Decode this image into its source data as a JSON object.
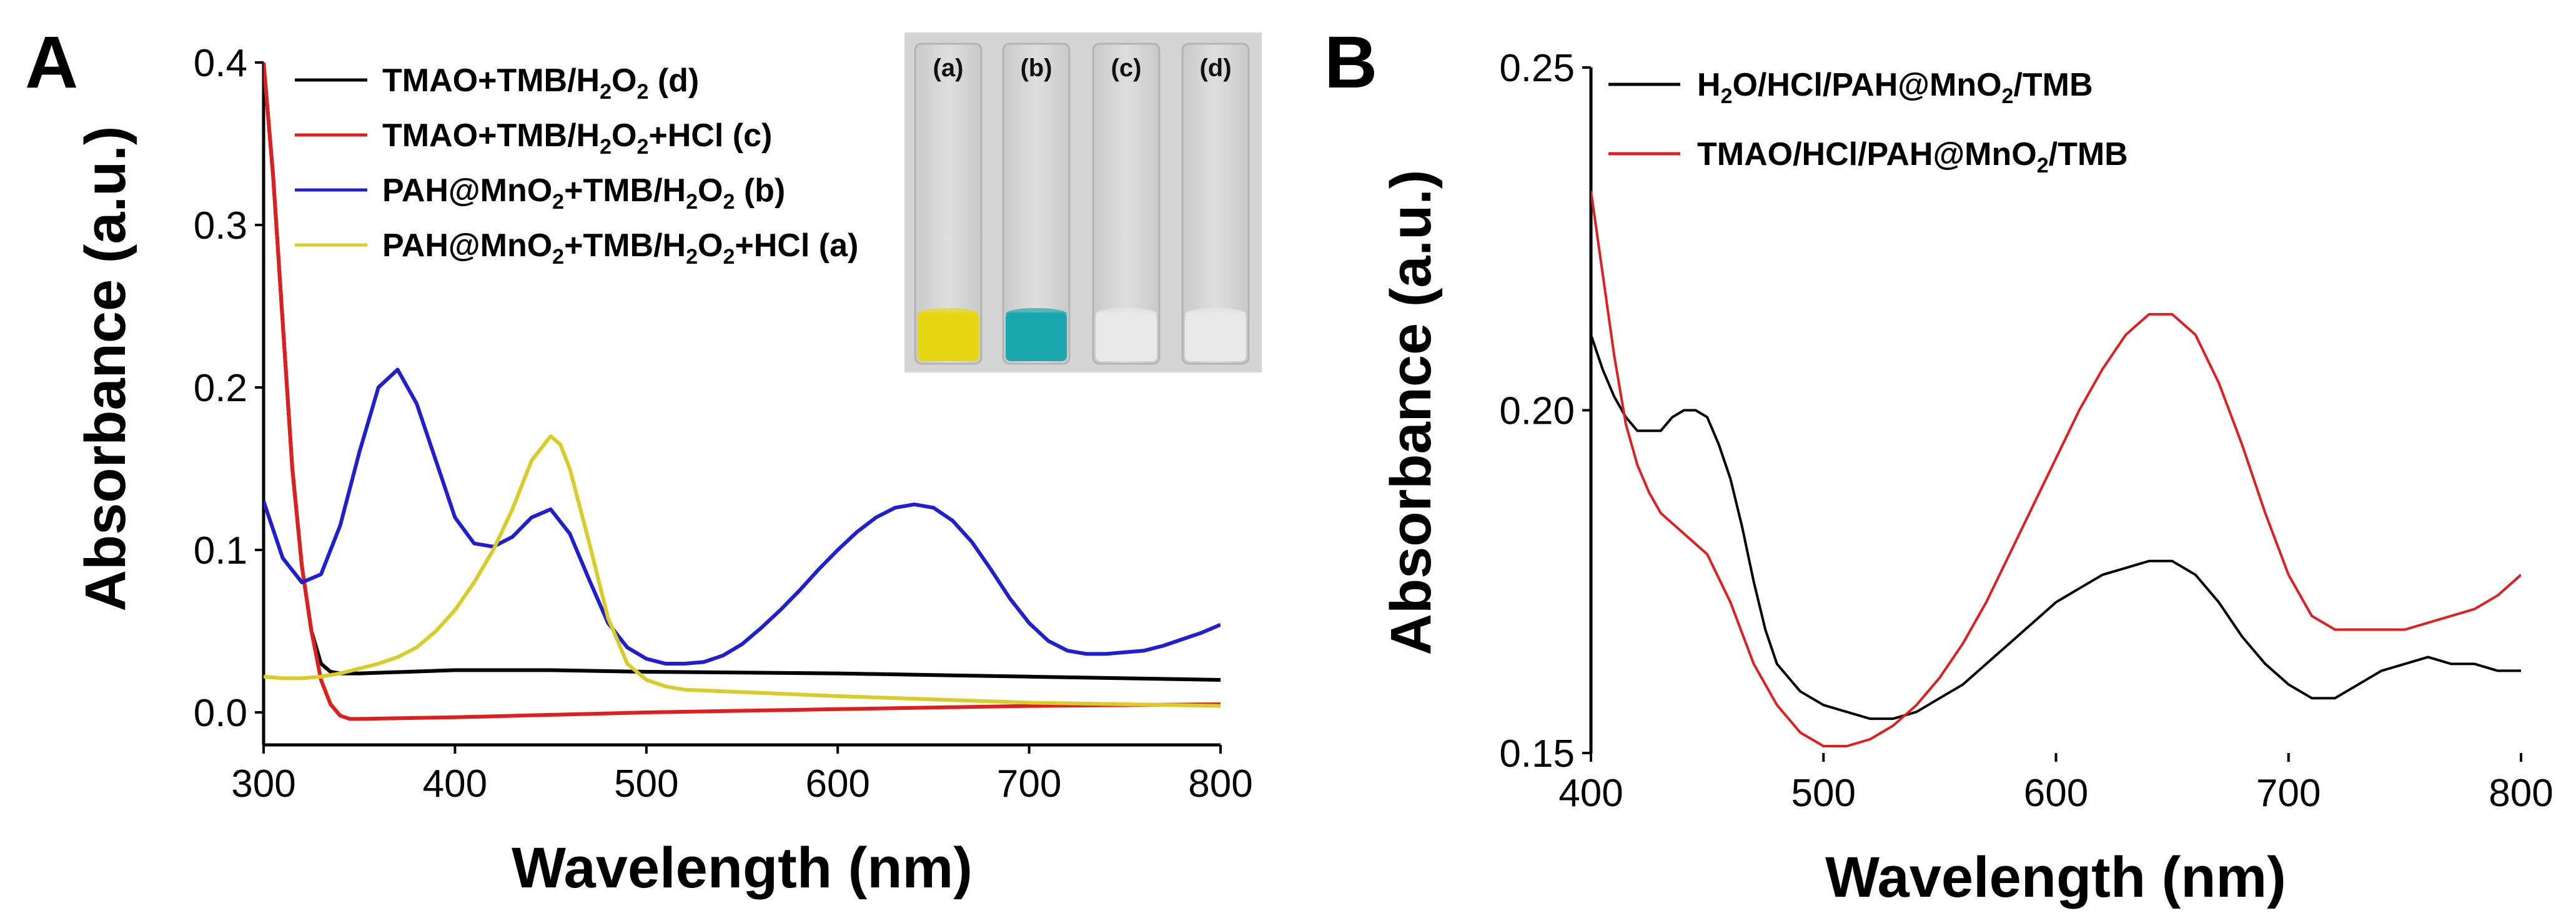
{
  "chart_data": [
    {
      "panel": "A",
      "type": "line",
      "xlabel": "Wavelength (nm)",
      "ylabel": "Absorbance (a.u.)",
      "xlim": [
        300,
        800
      ],
      "ylim": [
        -0.02,
        0.4
      ],
      "xticks": [
        300,
        400,
        500,
        600,
        700,
        800
      ],
      "yticks": [
        0.0,
        0.1,
        0.2,
        0.3,
        0.4
      ],
      "xtick_labels": [
        "300",
        "400",
        "500",
        "600",
        "700",
        "800"
      ],
      "ytick_labels": [
        "0.0",
        "0.1",
        "0.2",
        "0.3",
        "0.4"
      ],
      "legend_position": "top-left",
      "series": [
        {
          "name": "TMAO+TMB/H2O2 (d)",
          "legend": {
            "a": "TMAO+TMB/H",
            "s1": "2",
            "b": "O",
            "s2": "2",
            "c": " (d)"
          },
          "color": "#000000",
          "x": [
            300,
            305,
            310,
            315,
            320,
            325,
            330,
            335,
            340,
            350,
            400,
            450,
            500,
            600,
            700,
            800
          ],
          "y": [
            0.4,
            0.33,
            0.24,
            0.15,
            0.09,
            0.05,
            0.03,
            0.025,
            0.024,
            0.024,
            0.026,
            0.026,
            0.025,
            0.024,
            0.022,
            0.02
          ]
        },
        {
          "name": "TMAO+TMB/H2O2+HCl (c)",
          "legend": {
            "a": "TMAO+TMB/H",
            "s1": "2",
            "b": "O",
            "s2": "2",
            "c": "+HCl (c)"
          },
          "color": "#e01e1e",
          "x": [
            300,
            305,
            310,
            315,
            320,
            325,
            330,
            335,
            340,
            345,
            350,
            400,
            500,
            600,
            700,
            800
          ],
          "y": [
            0.4,
            0.33,
            0.24,
            0.15,
            0.09,
            0.05,
            0.02,
            0.005,
            -0.002,
            -0.004,
            -0.004,
            -0.003,
            0.0,
            0.002,
            0.004,
            0.005
          ]
        },
        {
          "name": "PAH@MnO2+TMB/H2O2 (b)",
          "legend": {
            "a": "PAH@MnO",
            "s1": "2",
            "b": "+TMB/H",
            "s2": "2",
            "c": "O",
            "s3": "2",
            "d": " (b)"
          },
          "color": "#1f1fd0",
          "x": [
            300,
            310,
            320,
            330,
            340,
            350,
            360,
            370,
            380,
            390,
            400,
            410,
            420,
            430,
            440,
            450,
            460,
            470,
            480,
            490,
            500,
            510,
            520,
            530,
            540,
            550,
            560,
            570,
            580,
            590,
            600,
            610,
            620,
            630,
            640,
            650,
            660,
            670,
            680,
            690,
            700,
            710,
            720,
            730,
            740,
            750,
            760,
            770,
            780,
            790,
            800
          ],
          "y": [
            0.13,
            0.095,
            0.08,
            0.085,
            0.115,
            0.16,
            0.2,
            0.211,
            0.19,
            0.155,
            0.12,
            0.104,
            0.102,
            0.108,
            0.12,
            0.125,
            0.11,
            0.082,
            0.055,
            0.04,
            0.033,
            0.03,
            0.03,
            0.031,
            0.035,
            0.042,
            0.052,
            0.063,
            0.075,
            0.088,
            0.1,
            0.111,
            0.12,
            0.126,
            0.128,
            0.126,
            0.118,
            0.105,
            0.088,
            0.07,
            0.055,
            0.044,
            0.038,
            0.036,
            0.036,
            0.037,
            0.038,
            0.041,
            0.045,
            0.049,
            0.054
          ]
        },
        {
          "name": "PAH@MnO2+TMB/H2O2+HCl (a)",
          "legend": {
            "a": "PAH@MnO",
            "s1": "2",
            "b": "+TMB/H",
            "s2": "2",
            "c": "O",
            "s3": "2",
            "d": "+HCl (a)"
          },
          "color": "#d9cc28",
          "x": [
            300,
            310,
            320,
            330,
            340,
            350,
            360,
            370,
            380,
            390,
            400,
            410,
            420,
            430,
            440,
            450,
            455,
            460,
            470,
            480,
            490,
            500,
            510,
            520,
            540,
            560,
            600,
            650,
            700,
            750,
            800
          ],
          "y": [
            0.022,
            0.021,
            0.021,
            0.022,
            0.024,
            0.027,
            0.03,
            0.034,
            0.04,
            0.05,
            0.063,
            0.08,
            0.1,
            0.125,
            0.155,
            0.17,
            0.165,
            0.15,
            0.105,
            0.058,
            0.03,
            0.02,
            0.016,
            0.014,
            0.013,
            0.012,
            0.01,
            0.008,
            0.006,
            0.005,
            0.004
          ]
        }
      ],
      "inset": {
        "description": "photograph of four vials",
        "vials": [
          {
            "label": "(a)",
            "solution_color": "#e8d511"
          },
          {
            "label": "(b)",
            "solution_color": "#1aa7ad"
          },
          {
            "label": "(c)",
            "solution_color": "#e8e8e8"
          },
          {
            "label": "(d)",
            "solution_color": "#e8e8e8"
          }
        ]
      }
    },
    {
      "panel": "B",
      "type": "line",
      "xlabel": "Wavelength (nm)",
      "ylabel": "Absorbance (a.u.)",
      "xlim": [
        400,
        800
      ],
      "ylim": [
        0.15,
        0.25
      ],
      "xticks": [
        400,
        500,
        600,
        700,
        800
      ],
      "yticks": [
        0.15,
        0.2,
        0.25
      ],
      "xtick_labels": [
        "400",
        "500",
        "600",
        "700",
        "800"
      ],
      "ytick_labels": [
        "0.15",
        "0.20",
        "0.25"
      ],
      "legend_position": "top-left",
      "series": [
        {
          "name": "H2O/HCl/PAH@MnO2/TMB",
          "legend": {
            "a": "H",
            "s1": "2",
            "b": "O/HCl/PAH@MnO",
            "s2": "2",
            "c": "/TMB"
          },
          "color": "#000000",
          "x": [
            400,
            405,
            410,
            415,
            420,
            425,
            430,
            435,
            440,
            445,
            450,
            455,
            460,
            465,
            470,
            475,
            480,
            490,
            500,
            510,
            520,
            530,
            540,
            550,
            560,
            570,
            580,
            590,
            600,
            610,
            620,
            630,
            640,
            650,
            660,
            670,
            680,
            690,
            700,
            710,
            720,
            730,
            740,
            750,
            760,
            770,
            780,
            790,
            800
          ],
          "y": [
            0.211,
            0.206,
            0.202,
            0.199,
            0.197,
            0.197,
            0.197,
            0.199,
            0.2,
            0.2,
            0.199,
            0.195,
            0.19,
            0.183,
            0.175,
            0.168,
            0.163,
            0.159,
            0.157,
            0.156,
            0.155,
            0.155,
            0.156,
            0.158,
            0.16,
            0.163,
            0.166,
            0.169,
            0.172,
            0.174,
            0.176,
            0.177,
            0.178,
            0.178,
            0.176,
            0.172,
            0.167,
            0.163,
            0.16,
            0.158,
            0.158,
            0.16,
            0.162,
            0.163,
            0.164,
            0.163,
            0.163,
            0.162,
            0.162
          ]
        },
        {
          "name": "TMAO/HCl/PAH@MnO2/TMB",
          "legend": {
            "a": "TMAO/HCl/PAH@MnO",
            "s1": "2",
            "b": "/TMB"
          },
          "color": "#e01e1e",
          "x": [
            400,
            405,
            410,
            415,
            420,
            425,
            430,
            440,
            450,
            460,
            470,
            480,
            490,
            500,
            510,
            520,
            530,
            540,
            550,
            560,
            570,
            580,
            590,
            600,
            610,
            620,
            630,
            640,
            650,
            660,
            670,
            680,
            690,
            700,
            710,
            720,
            730,
            740,
            750,
            760,
            770,
            780,
            790,
            800
          ],
          "y": [
            0.232,
            0.22,
            0.208,
            0.198,
            0.192,
            0.188,
            0.185,
            0.182,
            0.179,
            0.172,
            0.163,
            0.157,
            0.153,
            0.151,
            0.151,
            0.152,
            0.154,
            0.157,
            0.161,
            0.166,
            0.172,
            0.179,
            0.186,
            0.193,
            0.2,
            0.206,
            0.211,
            0.214,
            0.214,
            0.211,
            0.204,
            0.195,
            0.185,
            0.176,
            0.17,
            0.168,
            0.168,
            0.168,
            0.168,
            0.169,
            0.17,
            0.171,
            0.173,
            0.176
          ]
        }
      ]
    }
  ]
}
